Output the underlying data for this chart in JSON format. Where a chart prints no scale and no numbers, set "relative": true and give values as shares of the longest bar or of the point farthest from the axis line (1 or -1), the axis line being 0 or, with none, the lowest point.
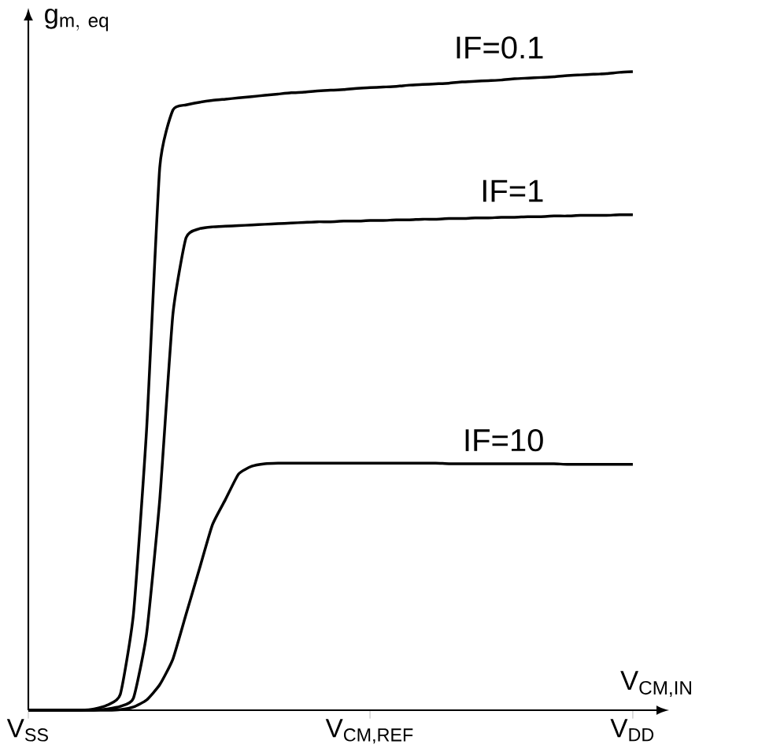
{
  "chart_data": {
    "type": "line",
    "relative": true,
    "xlabel": "V$_{CM,IN}$",
    "ylabel": "\\mathrm{g}_{\\mathrm{m,\\ eq}}",
    "categories": [
      "V$_{SS}$",
      null,
      null,
      null,
      null,
      null,
      null,
      null,
      null,
      null,
      null,
      null,
      null,
      null,
      null,
      null,
      null,
      null,
      null,
      null,
      null,
      null,
      null,
      null,
      null,
      null,
      "V$_{CM,REF}$",
      null,
      null,
      null,
      null,
      null,
      null,
      null,
      null,
      null,
      null,
      null,
      null,
      null,
      null,
      null,
      null,
      null,
      null,
      null,
      "V$_{DD}$"
    ],
    "line_style": "solid",
    "series": [
      {
        "name": "IF=0.1",
        "color": "#000000",
        "values": [
          0,
          0,
          0,
          0,
          0,
          0.002,
          0.008,
          0.025,
          0.151,
          0.44,
          0.85,
          0.94,
          0.948,
          0.952,
          0.955,
          0.957,
          0.959,
          0.961,
          0.963,
          0.965,
          0.967,
          0.968,
          0.97,
          0.971,
          0.972,
          0.974,
          0.975,
          0.976,
          0.977,
          0.979,
          0.98,
          0.981,
          0.982,
          0.984,
          0.985,
          0.986,
          0.987,
          0.989,
          0.99,
          0.991,
          0.992,
          0.994,
          0.995,
          0.996,
          0.997,
          0.999,
          1.0
        ]
      },
      {
        "name": "IF=1",
        "color": "#000000",
        "values": [
          0,
          0,
          0,
          0,
          0,
          0,
          0.002,
          0.006,
          0.019,
          0.12,
          0.33,
          0.62,
          0.74,
          0.754,
          0.757,
          0.758,
          0.759,
          0.76,
          0.761,
          0.762,
          0.763,
          0.764,
          0.765,
          0.765,
          0.766,
          0.766,
          0.767,
          0.767,
          0.768,
          0.768,
          0.769,
          0.769,
          0.77,
          0.77,
          0.771,
          0.771,
          0.772,
          0.772,
          0.773,
          0.773,
          0.774,
          0.774,
          0.775,
          0.775,
          0.775,
          0.776,
          0.776
        ]
      },
      {
        "name": "IF=10",
        "color": "#000000",
        "values": [
          0,
          0,
          0,
          0,
          0,
          0,
          0,
          0.001,
          0.005,
          0.016,
          0.04,
          0.08,
          0.15,
          0.22,
          0.29,
          0.33,
          0.37,
          0.382,
          0.386,
          0.387,
          0.387,
          0.387,
          0.387,
          0.387,
          0.387,
          0.387,
          0.387,
          0.387,
          0.387,
          0.387,
          0.387,
          0.387,
          0.386,
          0.386,
          0.386,
          0.386,
          0.386,
          0.386,
          0.386,
          0.386,
          0.386,
          0.385,
          0.385,
          0.385,
          0.385,
          0.385,
          0.385
        ]
      }
    ]
  }
}
